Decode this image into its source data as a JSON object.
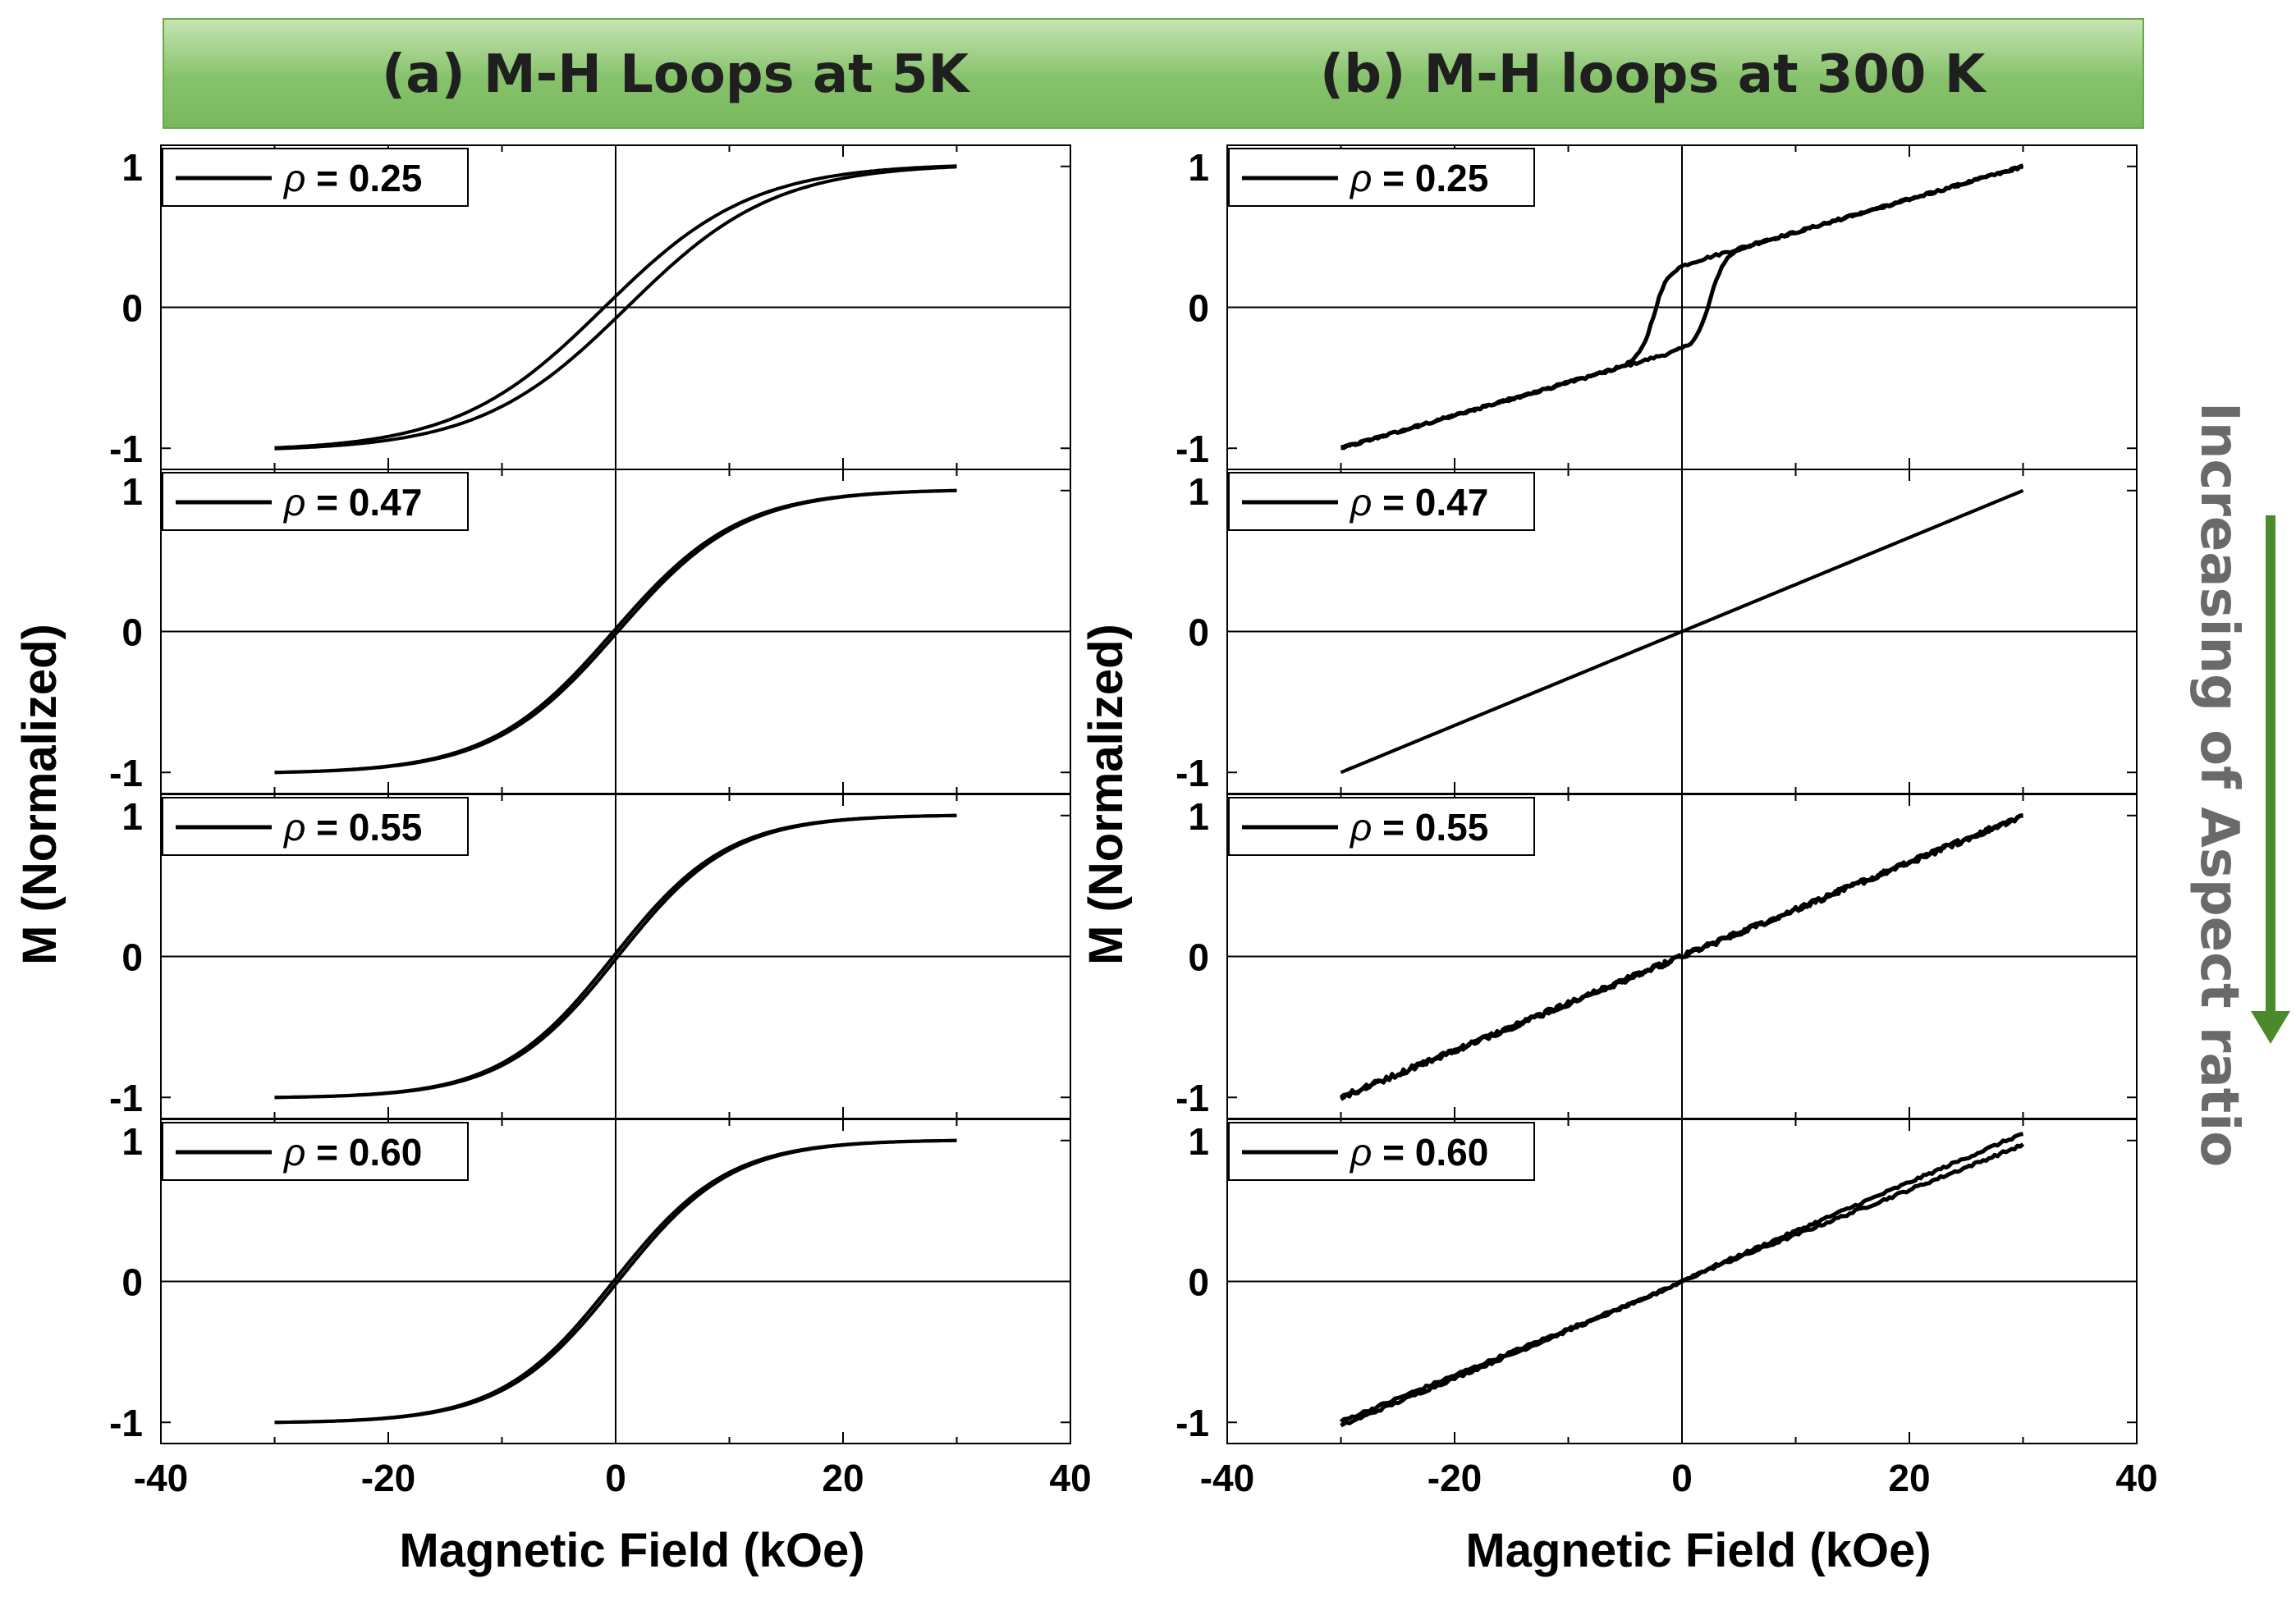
{
  "banner": {
    "title_a": "(a) M-H Loops at 5K",
    "title_b": "(b) M-H loops at 300 K"
  },
  "side_annotation": {
    "text": "Increasing of Aspect ratio",
    "arrow_color": "#4a8a2a"
  },
  "colors": {
    "curve": "#000000",
    "banner_green": "#86c26b",
    "annotation_gray": "#6a6a6a"
  },
  "chart_data": [
    {
      "id": "a",
      "type": "line",
      "title": "(a) M-H Loops at 5K",
      "xlabel": "Magnetic Field (kOe)",
      "ylabel": "M (Normalized)",
      "xlim": [
        -40,
        40
      ],
      "xticks": [
        -40,
        -20,
        0,
        20,
        40
      ],
      "yticks": [
        -1,
        0,
        1
      ],
      "ylim": [
        -1.15,
        1.15
      ],
      "panels": [
        {
          "legend": "ρ = 0.25",
          "rho": "0.25",
          "kind": "tanh",
          "s": 13,
          "hc": 1.0,
          "noise": 0
        },
        {
          "legend": "ρ = 0.47",
          "rho": "0.47",
          "kind": "tanh",
          "s": 11,
          "hc": 0.2,
          "noise": 0
        },
        {
          "legend": "ρ = 0.55",
          "rho": "0.55",
          "kind": "tanh",
          "s": 10,
          "hc": 0.2,
          "noise": 0
        },
        {
          "legend": "ρ = 0.60",
          "rho": "0.60",
          "kind": "tanh",
          "s": 10,
          "hc": 0.2,
          "noise": 0
        }
      ]
    },
    {
      "id": "b",
      "type": "line",
      "title": "(b) M-H loops at 300 K",
      "xlabel": "Magnetic Field (kOe)",
      "ylabel": "M (Normalized)",
      "xlim": [
        -40,
        40
      ],
      "xticks": [
        -40,
        -20,
        0,
        20,
        40
      ],
      "yticks": [
        -1,
        0,
        1
      ],
      "ylim": [
        -1.15,
        1.15
      ],
      "panels": [
        {
          "legend": "ρ = 0.25",
          "rho": "0.25",
          "kind": "ferro",
          "ms": 0.3,
          "hc": 2.5,
          "w": 1.2,
          "noise": 0.01
        },
        {
          "legend": "ρ = 0.47",
          "rho": "0.47",
          "kind": "linear",
          "hc": 0,
          "noise": 0
        },
        {
          "legend": "ρ = 0.55",
          "rho": "0.55",
          "kind": "linear",
          "hc": 0,
          "noise": 0.02
        },
        {
          "legend": "ρ = 0.60",
          "rho": "0.60",
          "kind": "linear",
          "hc": 0.3,
          "spread": 0.04,
          "noise": 0.01
        }
      ]
    }
  ]
}
